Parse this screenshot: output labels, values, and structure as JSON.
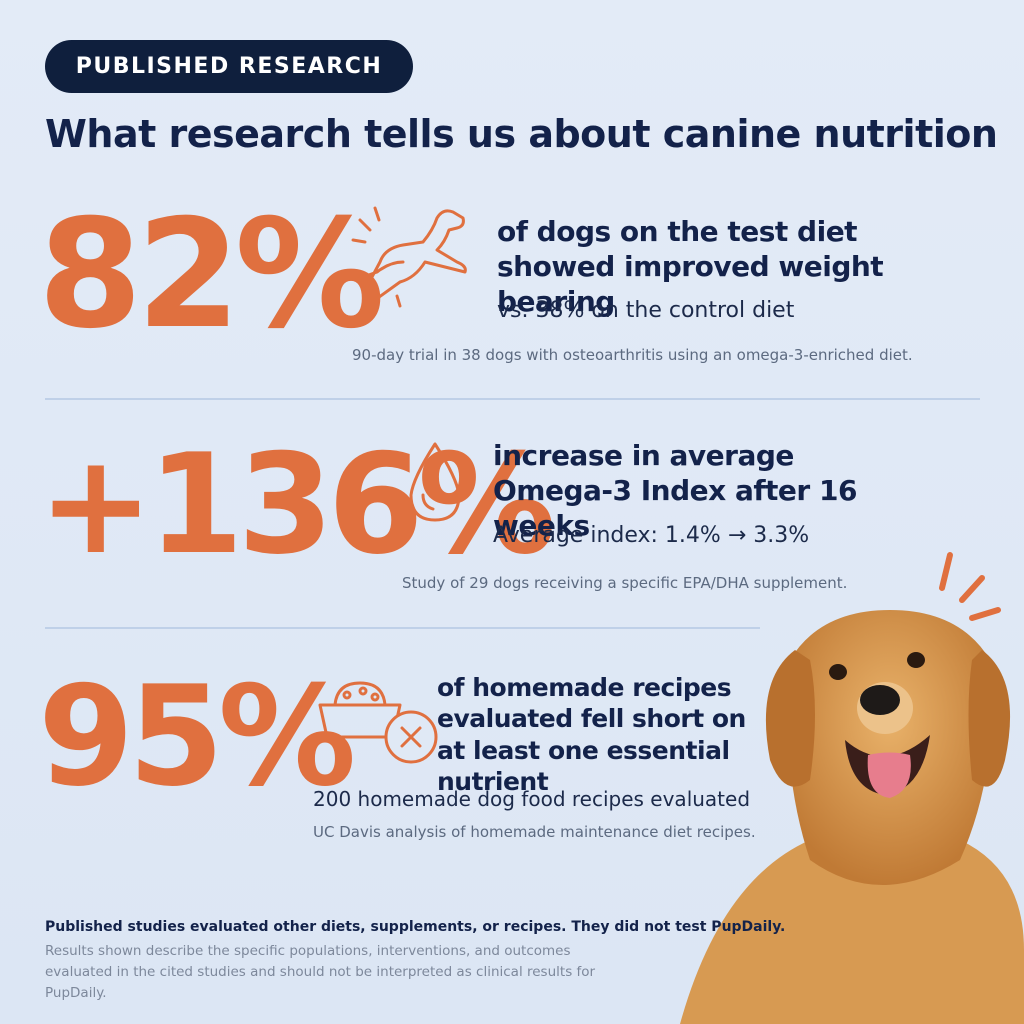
{
  "badge": "PUBLISHED RESEARCH",
  "title": "What research tells us about canine nutrition",
  "stats": [
    {
      "stat": "82%",
      "headline": "of dogs on the test diet showed improved weight bearing",
      "detail": "vs. 38% on the control diet",
      "note": "90-day trial in 38 dogs with osteoarthritis using an omega-3-enriched diet."
    },
    {
      "stat": "+136%",
      "headline": "increase in average Omega-3 Index after 16 weeks",
      "detail": "Average index: 1.4% → 3.3%",
      "note": "Study of 29 dogs receiving a specific EPA/DHA supplement."
    },
    {
      "stat": "95%",
      "headline": "of homemade recipes evaluated fell short on at least one essential nutrient",
      "detail": "200 homemade dog food recipes evaluated",
      "note": "UC Davis analysis of homemade maintenance diet recipes."
    }
  ],
  "footer": {
    "statement": "Published studies evaluated other diets, supplements, or recipes. They did not test PupDaily.",
    "disclaimer": "Results shown describe the specific populations, interventions, and outcomes evaluated in the cited studies and should not be interpreted as clinical results for PupDaily."
  }
}
